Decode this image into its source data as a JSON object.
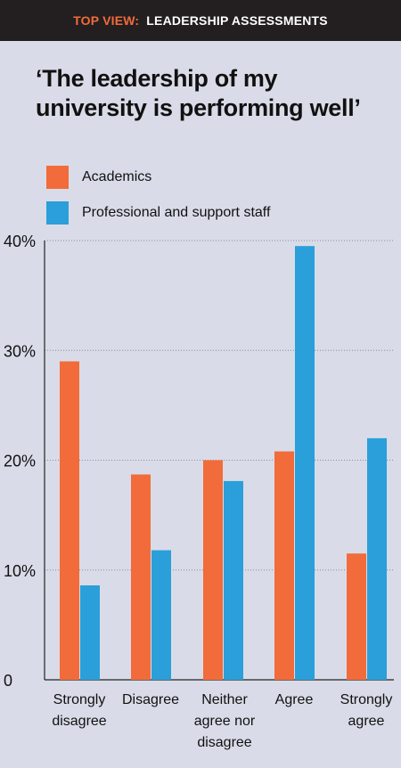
{
  "header": {
    "kicker": "TOP VIEW:",
    "headline": "LEADERSHIP ASSESSMENTS"
  },
  "colors": {
    "background": "#d9dce8",
    "header_bg": "#231f20",
    "accent_orange": "#f26b3a",
    "accent_blue": "#2b9fd9"
  },
  "chart_data": {
    "type": "bar",
    "title": "‘The leadership of my university is performing well’",
    "xlabel": "",
    "ylabel": "",
    "ylim": [
      0,
      40
    ],
    "yticks": [
      "0",
      "10%",
      "20%",
      "30%",
      "40%"
    ],
    "ytick_values": [
      0,
      10,
      20,
      30,
      40
    ],
    "grid": "horizontal dotted",
    "legend": "top-left",
    "categories": [
      [
        "Strongly",
        "disagree"
      ],
      [
        "Disagree"
      ],
      [
        "Neither",
        "agree nor",
        "disagree"
      ],
      [
        "Agree"
      ],
      [
        "Strongly",
        "agree"
      ]
    ],
    "series": [
      {
        "name": "Academics",
        "color": "#f26b3a",
        "values": [
          29.0,
          18.7,
          20.0,
          20.8,
          11.5
        ]
      },
      {
        "name": "Professional and support staff",
        "color": "#2b9fd9",
        "values": [
          8.6,
          11.8,
          18.1,
          39.5,
          22.0
        ]
      }
    ]
  }
}
